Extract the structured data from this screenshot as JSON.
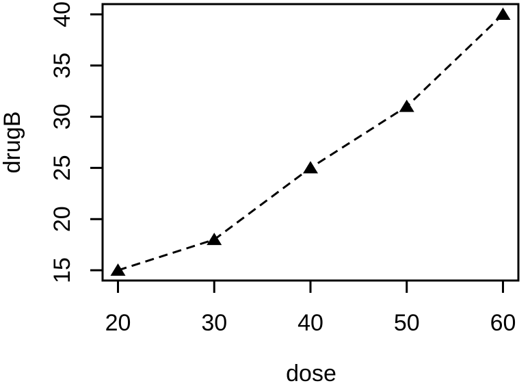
{
  "figure": {
    "background": "#ffffff",
    "foreground": "#000000"
  },
  "chart_data": {
    "type": "line",
    "title": "",
    "xlabel": "dose",
    "ylabel": "drugB",
    "x": [
      20,
      30,
      40,
      50,
      60
    ],
    "series": [
      {
        "name": "drugB",
        "values": [
          15,
          18,
          25,
          31,
          40
        ]
      }
    ],
    "x_ticks": [
      "20",
      "30",
      "40",
      "50",
      "60"
    ],
    "y_ticks": [
      "15",
      "20",
      "25",
      "30",
      "35",
      "40"
    ],
    "x_tick_values": [
      20,
      30,
      40,
      50,
      60
    ],
    "y_tick_values": [
      15,
      20,
      25,
      30,
      35,
      40
    ],
    "xlim": [
      18.4,
      61.6
    ],
    "ylim": [
      14,
      41
    ],
    "grid": false,
    "legend": "none",
    "line_style": "dashed",
    "marker": "filled-triangle-up",
    "color": "#000000"
  }
}
